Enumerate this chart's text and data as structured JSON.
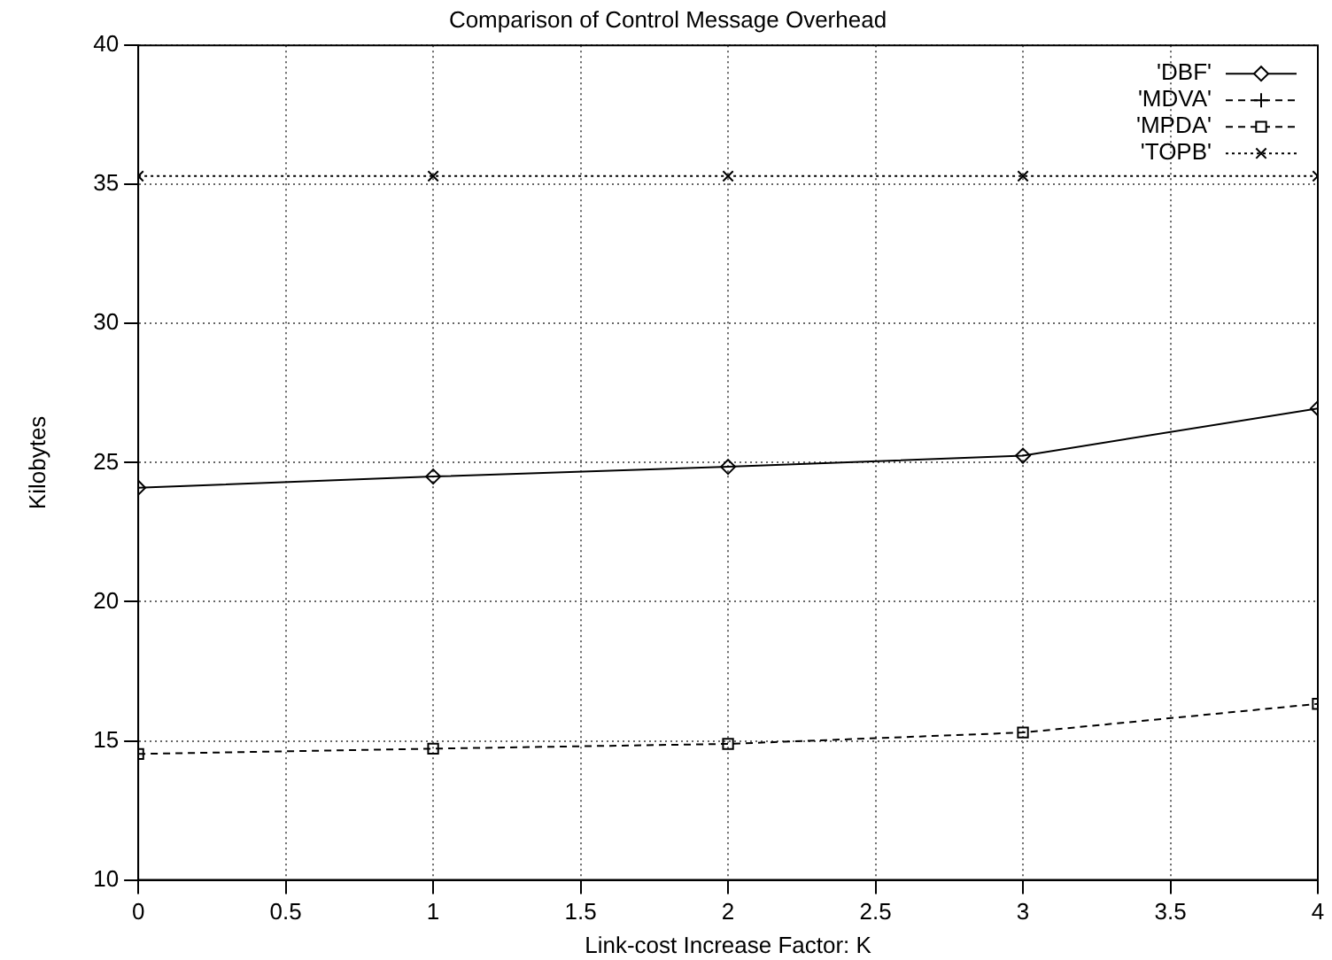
{
  "chart_data": {
    "type": "line",
    "title": "Comparison of Control Message Overhead",
    "xlabel": "Link-cost Increase Factor: K",
    "ylabel": "Kilobytes",
    "x": [
      0,
      1,
      2,
      3,
      4
    ],
    "series": [
      {
        "name": "'DBF'",
        "color": "#000000",
        "values": [
          24.1,
          24.5,
          24.85,
          25.25,
          26.95
        ],
        "marker": "diamond",
        "line_style": "solid"
      },
      {
        "name": "'MDVA'",
        "color": "#000000",
        "values": [
          null,
          null,
          null,
          null,
          null
        ],
        "marker": "cross",
        "line_style": "dashed"
      },
      {
        "name": "'MPDA'",
        "color": "#000000",
        "values": [
          14.53,
          14.72,
          14.89,
          15.3,
          16.33
        ],
        "marker": "square",
        "line_style": "dashed"
      },
      {
        "name": "'TOPB'",
        "color": "#000000",
        "values": [
          35.3,
          35.3,
          35.3,
          35.3,
          35.3
        ],
        "marker": "x",
        "line_style": "dotted"
      }
    ],
    "xlim": [
      0,
      4
    ],
    "xticks": [
      0,
      0.5,
      1,
      1.5,
      2,
      2.5,
      3,
      3.5,
      4
    ],
    "ylim": [
      10,
      40
    ],
    "yticks": [
      10,
      15,
      20,
      25,
      30,
      35,
      40
    ],
    "grid": true,
    "legend": "top right"
  }
}
